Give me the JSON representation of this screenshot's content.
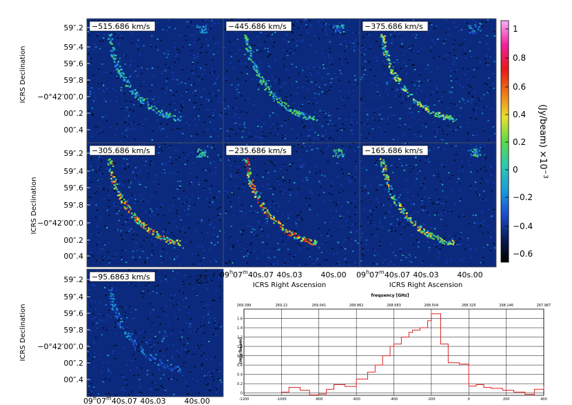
{
  "panels": [
    {
      "velocity_label": "−515.686 km/s",
      "arc_strength": 0.55,
      "ne_blob": 0.45
    },
    {
      "velocity_label": "−445.686 km/s",
      "arc_strength": 0.6,
      "ne_blob": 0.45
    },
    {
      "velocity_label": "−375.686 km/s",
      "arc_strength": 0.7,
      "ne_blob": 0.45
    },
    {
      "velocity_label": "−305.686 km/s",
      "arc_strength": 0.85,
      "ne_blob": 0.6
    },
    {
      "velocity_label": "−235.686 km/s",
      "arc_strength": 0.9,
      "ne_blob": 0.55
    },
    {
      "velocity_label": "−165.686 km/s",
      "arc_strength": 0.75,
      "ne_blob": 0.6
    },
    {
      "velocity_label": "−95.6863 km/s",
      "arc_strength": 0.35,
      "ne_blob": 0.2
    }
  ],
  "axes": {
    "dec_label": "ICRS Declination",
    "ra_label": "ICRS Right Ascension",
    "dec_ticks": [
      "59″.2",
      "59″.4",
      "59″.6",
      "59″.8",
      "−0°42′00″.0",
      "00″.2",
      "00″.4"
    ],
    "ra_ticks": [
      "09h07m40s.07",
      "40s.03",
      "40s.00"
    ]
  },
  "colorbar": {
    "label": "(Jy/beam)",
    "scale_label": "×10",
    "scale_exponent": "−3",
    "ticks": [
      "1",
      "0.8",
      "0.6",
      "0.4",
      "0.2",
      "0",
      "−0.2",
      "−0.4",
      "−0.6"
    ],
    "colors": [
      "#000000",
      "#0a1e5a",
      "#1c4fd0",
      "#1b9ed8",
      "#30c8b0",
      "#5ed84a",
      "#e8e030",
      "#f07818",
      "#e81818",
      "#f020a0",
      "#f8b0f8"
    ]
  },
  "chart_data": {
    "type": "line",
    "step": true,
    "top_axis_label": "frequency [GHz]",
    "top_ticks": [
      "269.399",
      "269.22",
      "269.041",
      "268.862",
      "268.683",
      "268.504",
      "268.325",
      "268.146",
      "267.967"
    ],
    "bottom_ticks": [
      "-1200",
      "-1000",
      "-800",
      "-600",
      "-400",
      "-200",
      "0",
      "200",
      "400"
    ],
    "y_ticks": [
      "1.6",
      "1.4",
      "1.2",
      "1.0",
      "0.8",
      "0.6",
      "0.4",
      "0.2",
      "0"
    ],
    "ylabel": "(mJy/beam)",
    "xlim": [
      -1200,
      400
    ],
    "ylim": [
      -0.05,
      1.8
    ],
    "color": "#dd2020",
    "series": [
      {
        "x": [
          -1000,
          -960,
          -900,
          -850,
          -800,
          -760,
          -720,
          -660,
          -600,
          -540,
          -500,
          -460,
          -420,
          -400,
          -360,
          -320,
          -300,
          -260,
          -220,
          -200,
          -180,
          -150,
          -110,
          -90,
          -50,
          0,
          40,
          80,
          120,
          180,
          240,
          300,
          350,
          400
        ],
        "y": [
          0.02,
          0.12,
          0.06,
          -0.04,
          -0.02,
          0.08,
          0.18,
          0.14,
          0.3,
          0.45,
          0.6,
          0.8,
          1.0,
          1.05,
          1.2,
          1.3,
          1.35,
          1.4,
          1.55,
          1.7,
          1.7,
          1.05,
          0.65,
          0.65,
          0.62,
          0.15,
          0.18,
          0.12,
          0.1,
          0.06,
          0.02,
          -0.03,
          0.08,
          0.15
        ]
      }
    ]
  }
}
